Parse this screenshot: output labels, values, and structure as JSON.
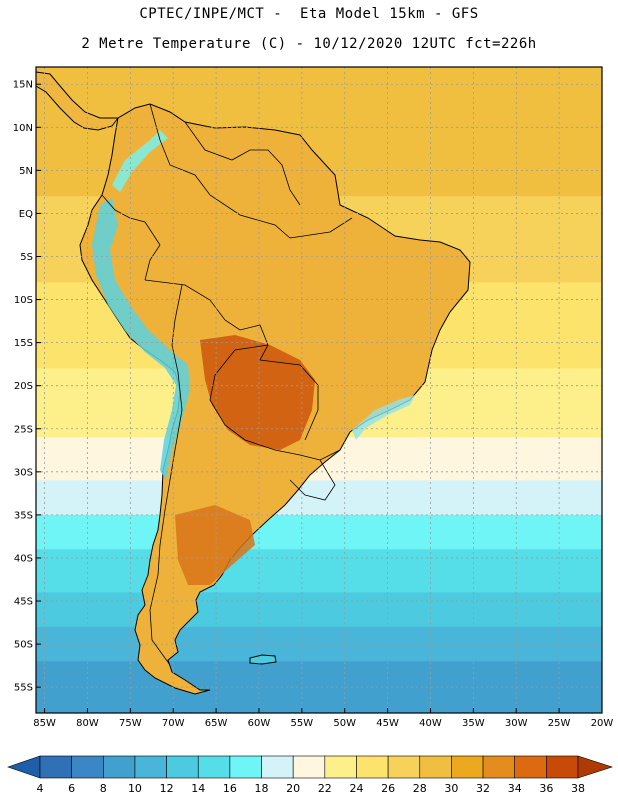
{
  "header": {
    "line1": "CPTEC/INPE/MCT -  Eta Model 15km - GFS",
    "line2": "2 Metre Temperature (C) - 10/12/2020 12UTC fct=226h"
  },
  "map": {
    "lat_ticks": [
      "15N",
      "10N",
      "5N",
      "EQ",
      "5S",
      "10S",
      "15S",
      "20S",
      "25S",
      "30S",
      "35S",
      "40S",
      "45S",
      "50S",
      "55S"
    ],
    "lon_ticks": [
      "85W",
      "80W",
      "75W",
      "70W",
      "65W",
      "60W",
      "55W",
      "50W",
      "45W",
      "40W",
      "35W",
      "30W",
      "25W",
      "20W"
    ],
    "lon_range": [
      -86,
      -20
    ],
    "lat_range": [
      -58,
      17
    ],
    "ocean_bands": [
      {
        "lat_from": 17,
        "lat_to": 2,
        "value": 28
      },
      {
        "lat_from": 2,
        "lat_to": -8,
        "value": 26
      },
      {
        "lat_from": -8,
        "lat_to": -18,
        "value": 24
      },
      {
        "lat_from": -18,
        "lat_to": -26,
        "value": 22
      },
      {
        "lat_from": -26,
        "lat_to": -31,
        "value": 20
      },
      {
        "lat_from": -31,
        "lat_to": -35,
        "value": 18
      },
      {
        "lat_from": -35,
        "lat_to": -39,
        "value": 16
      },
      {
        "lat_from": -39,
        "lat_to": -44,
        "value": 14
      },
      {
        "lat_from": -44,
        "lat_to": -48,
        "value": 12
      },
      {
        "lat_from": -48,
        "lat_to": -52,
        "value": 10
      },
      {
        "lat_from": -52,
        "lat_to": -58,
        "value": 8
      }
    ]
  },
  "colorbar": {
    "labels": [
      "4",
      "6",
      "8",
      "10",
      "12",
      "14",
      "16",
      "18",
      "20",
      "22",
      "24",
      "26",
      "28",
      "30",
      "32",
      "34",
      "36",
      "38"
    ],
    "colors": [
      "#1f5ea8",
      "#2f70b6",
      "#3b86c4",
      "#42a0cf",
      "#49b6d9",
      "#4ccbe0",
      "#55dde8",
      "#6ff5f5",
      "#d3f3f8",
      "#fff6e0",
      "#fdf08a",
      "#fbe36c",
      "#f7d25a",
      "#f0bf40",
      "#eca81f",
      "#e48c1e",
      "#dc6a10",
      "#c84a08",
      "#b03a05"
    ]
  }
}
